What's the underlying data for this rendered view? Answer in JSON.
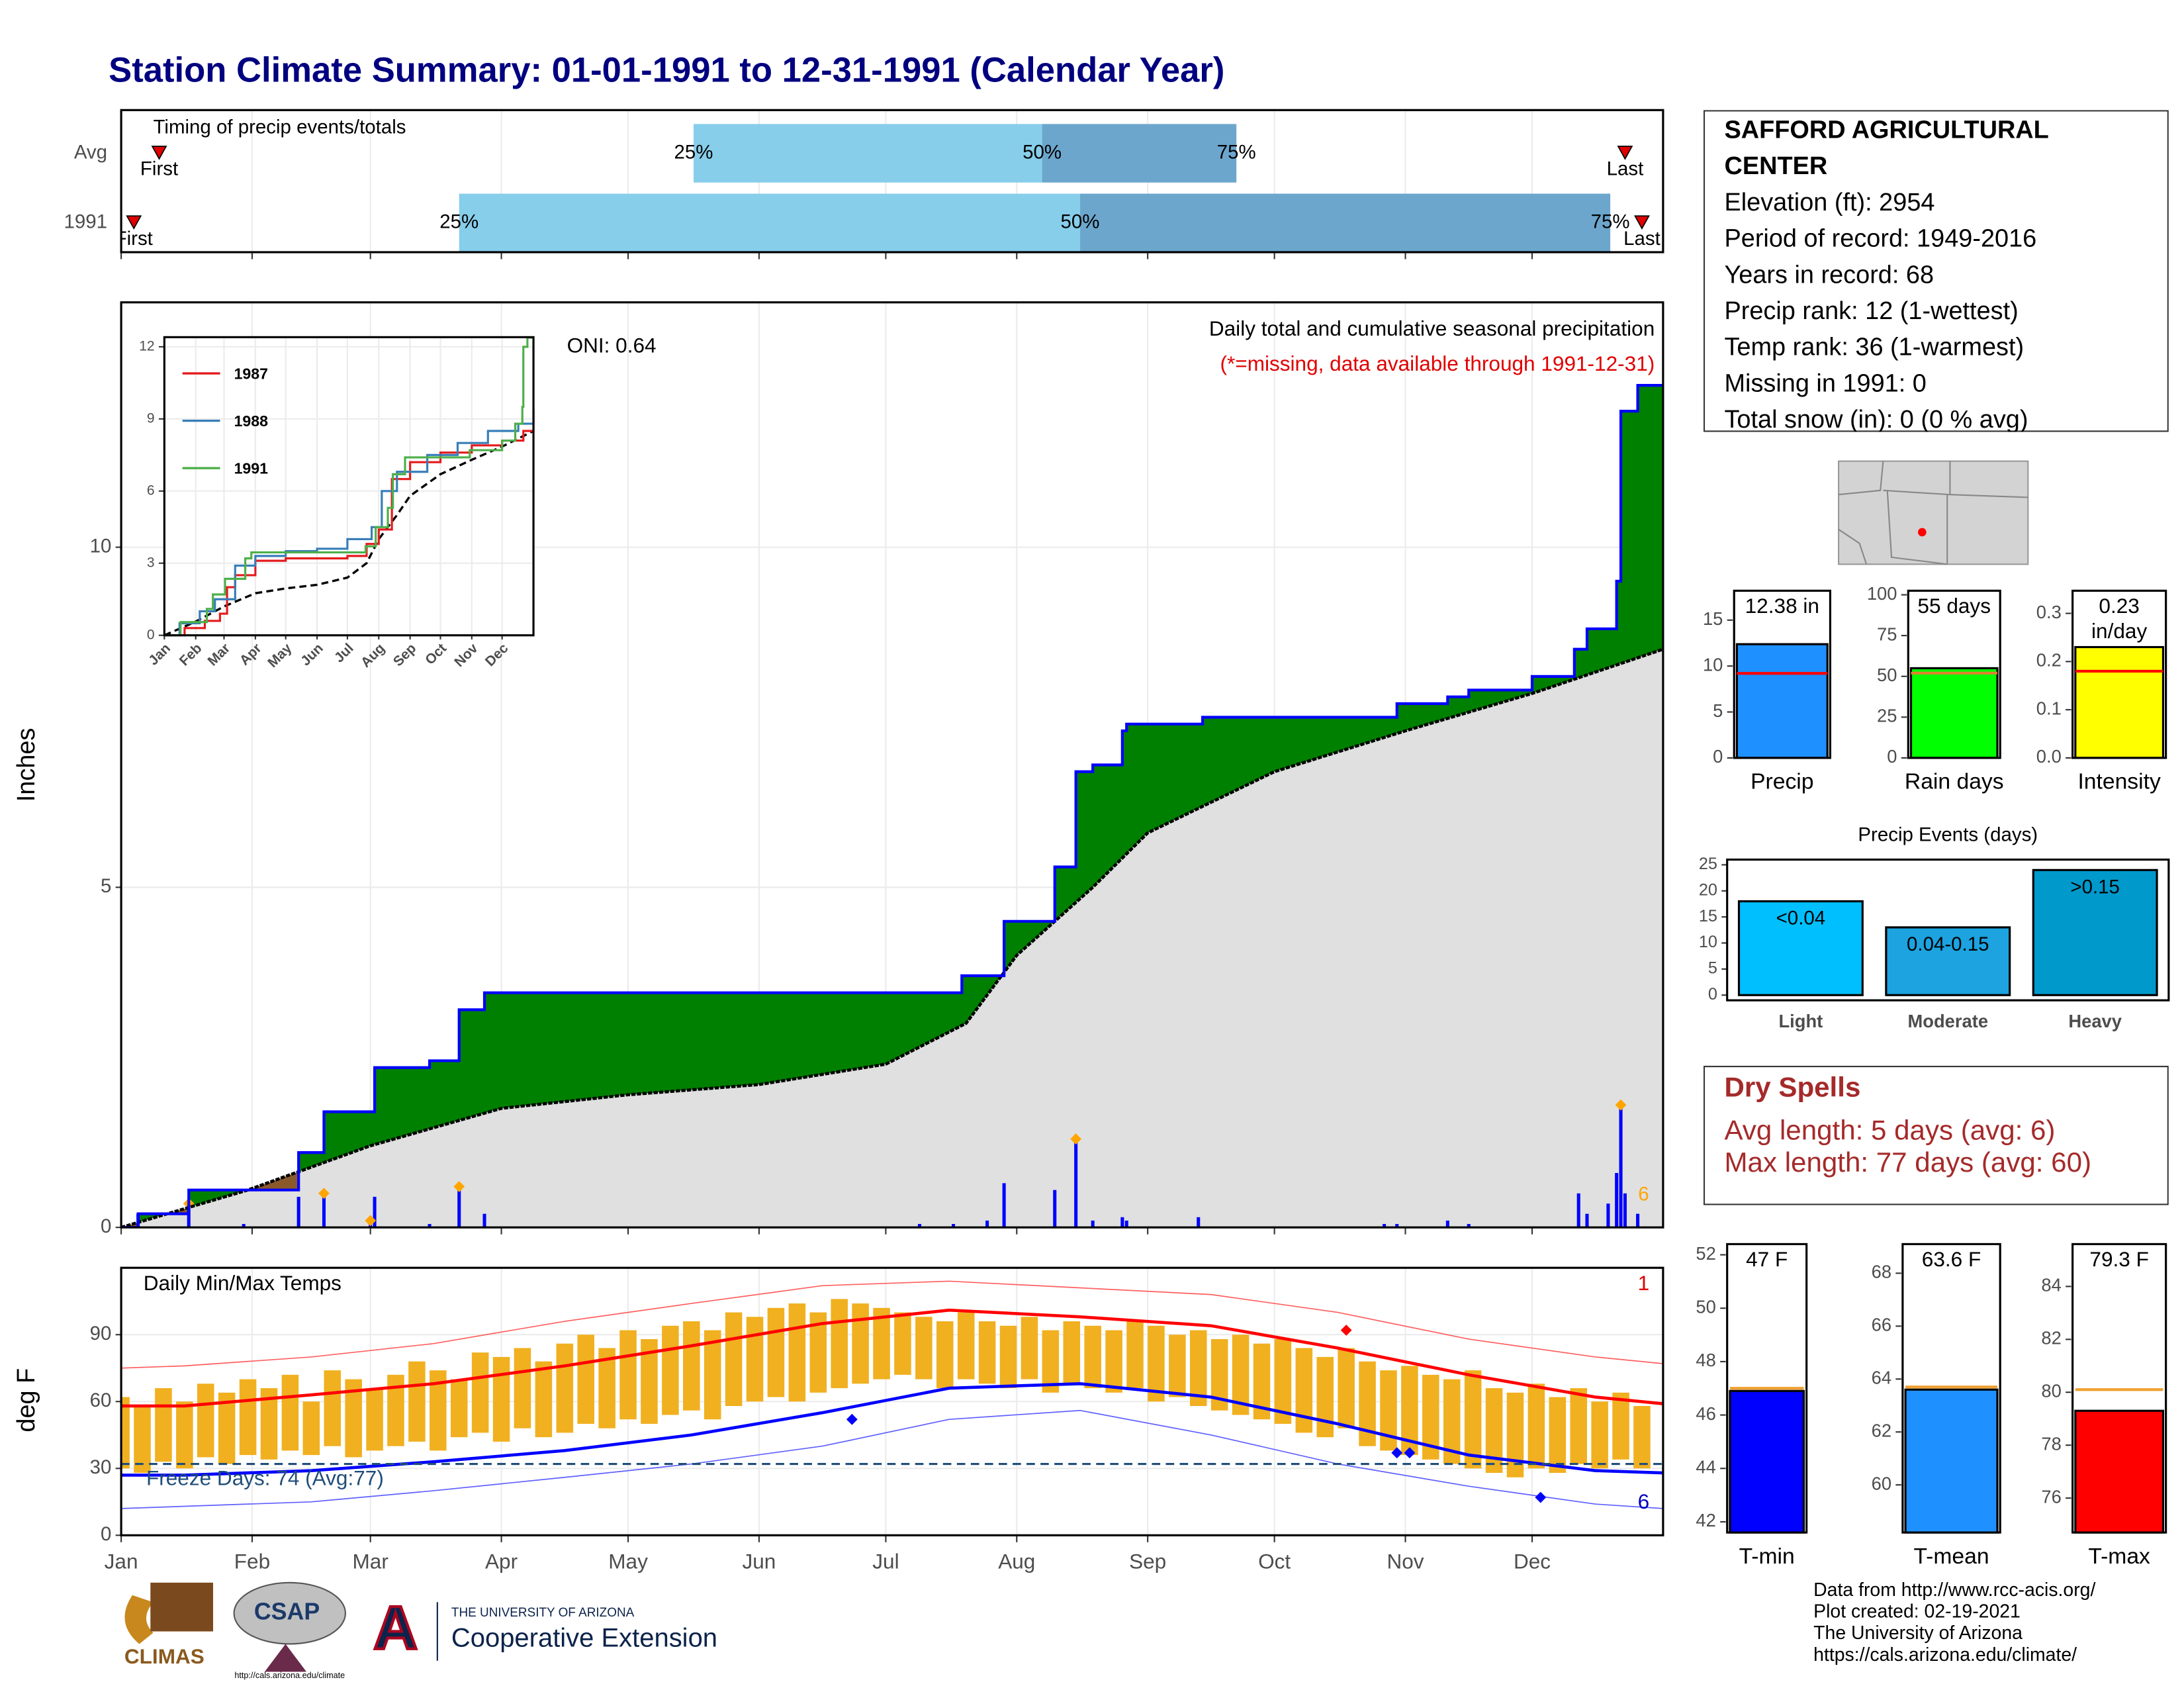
{
  "title": "Station Climate Summary: 01-01-1991 to 12-31-1991 (Calendar Year)",
  "station": {
    "name": "SAFFORD AGRICULTURAL CENTER",
    "lines": [
      "Elevation (ft): 2954",
      "Period of record: 1949-2016",
      "Years in record: 68",
      "Precip rank: 12 (1-wettest)",
      "Temp rank: 36 (1-warmest)",
      "Missing in 1991: 0",
      "Total snow (in): 0 (0 % avg)"
    ]
  },
  "dry_spells": {
    "title": "Dry Spells",
    "lines": [
      "Avg length: 5 days (avg: 6)",
      "Max length: 77 days (avg: 60)"
    ]
  },
  "footer": {
    "lines": [
      "Data from http://www.rcc-acis.org/",
      "Plot created: 02-19-2021",
      "The University of Arizona",
      "https://cals.arizona.edu/climate/"
    ]
  },
  "logos": {
    "climas": "CLIMAS",
    "csap": "CSAP",
    "csap_url": "http://cals.arizona.edu/climate",
    "university": "THE UNIVERSITY OF ARIZONA",
    "extension": "Cooperative Extension"
  },
  "chart_data": [
    {
      "type": "timeline",
      "title": "Timing of precip events/totals",
      "xlim": [
        0,
        365
      ],
      "quantile_labels": [
        "25%",
        "50%",
        "75%"
      ],
      "first_label": "First",
      "last_label": "Last",
      "colors": [
        "#87ceeb",
        "#6ca6cd"
      ],
      "series": [
        {
          "name": "Avg",
          "first": 9,
          "q25": 135.5,
          "q50": 218,
          "q75": 264,
          "last": 356
        },
        {
          "name": "1991",
          "first": 3,
          "q25": 80,
          "q50": 227,
          "q75": 352.5,
          "last": 360
        }
      ]
    },
    {
      "type": "cumulative",
      "title": "Daily total and cumulative seasonal precipitation",
      "subtitle": "(*=missing, data available through 1991-12-31)",
      "oni": "ONI: 0.64",
      "corner_note": "6",
      "y_label": "Inches",
      "xlim": [
        0,
        365
      ],
      "ylim": [
        0,
        13.6
      ],
      "yticks": [
        0,
        5,
        10
      ],
      "grid": true,
      "cumulative": {
        "color": "#0000ff",
        "x": [
          0,
          4,
          16,
          42,
          48,
          60,
          73,
          80,
          86,
          199,
          209,
          221,
          226,
          230,
          237,
          238,
          256,
          302,
          314,
          319,
          334,
          344,
          347,
          354,
          355,
          359
        ],
        "values": [
          0,
          0.2,
          0.55,
          1.1,
          1.7,
          2.35,
          2.45,
          3.2,
          3.45,
          3.7,
          4.5,
          5.3,
          6.7,
          6.8,
          7.3,
          7.4,
          7.5,
          7.7,
          7.8,
          7.9,
          8.1,
          8.5,
          8.8,
          9.5,
          12.0,
          12.38
        ]
      },
      "normal": {
        "color": "#000000",
        "x": [
          0,
          30,
          59,
          90,
          120,
          151,
          181,
          200,
          212,
          230,
          243,
          273,
          304,
          334,
          365
        ],
        "values": [
          0,
          0.55,
          1.2,
          1.75,
          1.95,
          2.1,
          2.4,
          3.0,
          4.0,
          5.0,
          5.8,
          6.7,
          7.3,
          7.85,
          8.5
        ]
      },
      "daily": {
        "color": "#0000ff",
        "x": [
          4,
          16,
          29,
          42,
          48,
          59,
          60,
          73,
          80,
          86,
          189,
          197,
          205,
          209,
          221,
          226,
          230,
          237,
          238,
          255,
          299,
          302,
          314,
          319,
          345,
          347,
          352,
          354,
          355,
          356,
          359
        ],
        "values": [
          0.2,
          0.35,
          0.05,
          0.45,
          0.5,
          0.1,
          0.45,
          0.05,
          0.6,
          0.2,
          0.05,
          0.05,
          0.1,
          0.65,
          0.55,
          1.3,
          0.1,
          0.15,
          0.1,
          0.15,
          0.05,
          0.05,
          0.1,
          0.05,
          0.5,
          0.2,
          0.35,
          0.8,
          1.8,
          0.5,
          0.2
        ]
      },
      "highlight_index": [
        1,
        4,
        5,
        8,
        15,
        28
      ],
      "highlight_color": "#ffa500",
      "above_color": "#008000",
      "below_color": "#8b5a2b",
      "normal_fill": "#e0e0e0"
    },
    {
      "type": "line",
      "xlim": [
        0,
        365
      ],
      "ylim": [
        0,
        12.4
      ],
      "yticks": [
        0,
        3,
        6,
        9,
        12
      ],
      "grid": true,
      "xticks": [
        {
          "value": 0,
          "label": "Jan"
        },
        {
          "value": 31,
          "label": "Feb"
        },
        {
          "value": 59,
          "label": "Mar"
        },
        {
          "value": 90,
          "label": "Apr"
        },
        {
          "value": 120,
          "label": "May"
        },
        {
          "value": 151,
          "label": "Jun"
        },
        {
          "value": 181,
          "label": "Jul"
        },
        {
          "value": 212,
          "label": "Aug"
        },
        {
          "value": 243,
          "label": "Sep"
        },
        {
          "value": 273,
          "label": "Oct"
        },
        {
          "value": 304,
          "label": "Nov"
        },
        {
          "value": 334,
          "label": "Dec"
        }
      ],
      "series": [
        {
          "name": "1987",
          "color": "#e41a1c",
          "x": [
            0,
            20,
            40,
            55,
            62,
            70,
            90,
            120,
            151,
            181,
            200,
            212,
            225,
            243,
            273,
            304,
            334,
            355,
            365
          ],
          "values": [
            0,
            0.3,
            0.6,
            0.9,
            2.0,
            2.5,
            3.1,
            3.2,
            3.2,
            3.3,
            3.8,
            4.4,
            6.5,
            7.2,
            7.6,
            7.9,
            8.1,
            8.5,
            9.3
          ]
        },
        {
          "name": "1988",
          "color": "#377eb8",
          "x": [
            0,
            15,
            35,
            50,
            70,
            90,
            120,
            151,
            181,
            205,
            215,
            230,
            260,
            290,
            320,
            350,
            365
          ],
          "values": [
            0,
            0.5,
            1.0,
            1.5,
            2.9,
            3.3,
            3.5,
            3.6,
            4.0,
            4.5,
            6.0,
            6.8,
            7.5,
            8.0,
            8.5,
            8.8,
            9.4
          ]
        },
        {
          "name": "1991",
          "color": "#4daf4a",
          "x": [
            0,
            16,
            42,
            48,
            60,
            80,
            86,
            199,
            209,
            221,
            226,
            238,
            302,
            334,
            347,
            354,
            355,
            359,
            365
          ],
          "values": [
            0,
            0.55,
            1.1,
            1.7,
            2.35,
            3.2,
            3.45,
            3.7,
            4.5,
            5.3,
            6.7,
            7.4,
            7.7,
            8.1,
            8.8,
            9.5,
            12.0,
            12.38,
            12.38
          ]
        }
      ],
      "normal": {
        "color": "#000000",
        "x": [
          0,
          30,
          59,
          90,
          120,
          151,
          181,
          200,
          212,
          230,
          243,
          273,
          304,
          334,
          365
        ],
        "values": [
          0,
          0.55,
          1.2,
          1.75,
          1.95,
          2.1,
          2.4,
          3.0,
          4.0,
          5.0,
          5.8,
          6.7,
          7.3,
          7.85,
          8.5
        ]
      }
    },
    {
      "type": "temperature",
      "title": "Daily Min/Max Temps",
      "freeze_text": "Freeze Days: 74 (Avg:77)",
      "y_label": "deg F",
      "note_high": "1",
      "note_low": "6",
      "xlim": [
        0,
        365
      ],
      "ylim": [
        0,
        120
      ],
      "yticks": [
        0,
        30,
        60,
        90
      ],
      "grid": true,
      "xticks": [
        {
          "value": 0,
          "label": "Jan"
        },
        {
          "value": 31,
          "label": "Feb"
        },
        {
          "value": 59,
          "label": "Mar"
        },
        {
          "value": 90,
          "label": "Apr"
        },
        {
          "value": 120,
          "label": "May"
        },
        {
          "value": 151,
          "label": "Jun"
        },
        {
          "value": 181,
          "label": "Jul"
        },
        {
          "value": 212,
          "label": "Aug"
        },
        {
          "value": 243,
          "label": "Sep"
        },
        {
          "value": 273,
          "label": "Oct"
        },
        {
          "value": 304,
          "label": "Nov"
        },
        {
          "value": 334,
          "label": "Dec"
        }
      ],
      "freeze_threshold": 32,
      "bar_color": "#f0b020",
      "bars": {
        "x": [
          0,
          5,
          10,
          15,
          20,
          25,
          30,
          35,
          40,
          45,
          50,
          55,
          60,
          65,
          70,
          75,
          80,
          85,
          90,
          95,
          100,
          105,
          110,
          115,
          120,
          125,
          130,
          135,
          140,
          145,
          150,
          155,
          160,
          165,
          170,
          175,
          180,
          185,
          190,
          195,
          200,
          205,
          210,
          215,
          220,
          225,
          230,
          235,
          240,
          245,
          250,
          255,
          260,
          265,
          270,
          275,
          280,
          285,
          290,
          295,
          300,
          305,
          310,
          315,
          320,
          325,
          330,
          335,
          340,
          345,
          350,
          355,
          360
        ],
        "max": [
          62,
          58,
          66,
          60,
          68,
          64,
          70,
          66,
          72,
          60,
          74,
          70,
          66,
          72,
          78,
          74,
          70,
          82,
          80,
          84,
          78,
          86,
          90,
          84,
          92,
          88,
          94,
          96,
          92,
          100,
          98,
          102,
          104,
          100,
          106,
          104,
          102,
          100,
          98,
          96,
          100,
          96,
          94,
          98,
          92,
          96,
          94,
          92,
          96,
          94,
          90,
          92,
          88,
          90,
          86,
          88,
          84,
          80,
          84,
          78,
          74,
          76,
          72,
          70,
          74,
          66,
          64,
          68,
          62,
          66,
          60,
          64,
          58
        ],
        "min": [
          30,
          28,
          33,
          30,
          35,
          32,
          36,
          34,
          38,
          36,
          40,
          35,
          38,
          40,
          42,
          38,
          44,
          46,
          42,
          48,
          44,
          46,
          50,
          48,
          52,
          50,
          54,
          56,
          52,
          58,
          60,
          62,
          60,
          64,
          66,
          68,
          70,
          72,
          70,
          66,
          70,
          68,
          66,
          70,
          64,
          68,
          66,
          64,
          66,
          60,
          62,
          58,
          56,
          54,
          52,
          50,
          46,
          44,
          48,
          40,
          38,
          36,
          34,
          32,
          30,
          28,
          26,
          30,
          28,
          32,
          30,
          34,
          30
        ]
      },
      "line_x": [
        0,
        15,
        45,
        74,
        105,
        135,
        166,
        196,
        227,
        258,
        288,
        319,
        349,
        365
      ],
      "normal_max": {
        "color": "#ff0000",
        "values": [
          58,
          58,
          63,
          68,
          76,
          85,
          95,
          101,
          98,
          94,
          84,
          72,
          62,
          59
        ]
      },
      "normal_min": {
        "color": "#0000ff",
        "values": [
          27,
          27,
          29,
          33,
          38,
          45,
          55,
          66,
          68,
          62,
          50,
          36,
          29,
          28
        ]
      },
      "record_max": {
        "color": "#ff6060",
        "values": [
          75,
          76,
          80,
          86,
          96,
          104,
          112,
          114,
          111,
          108,
          100,
          88,
          80,
          77
        ]
      },
      "record_min": {
        "color": "#6060ff",
        "values": [
          12,
          13,
          15,
          20,
          26,
          32,
          40,
          52,
          56,
          45,
          32,
          22,
          14,
          12
        ]
      },
      "record_highs": {
        "color": "#ff0000",
        "x": [
          290
        ],
        "values": [
          92
        ]
      },
      "record_lows": {
        "color": "#0000ff",
        "x": [
          173,
          302,
          305,
          336
        ],
        "values": [
          52,
          37,
          37,
          17
        ]
      }
    },
    {
      "type": "bar",
      "categories": [
        "Precip"
      ],
      "values": [
        12.38
      ],
      "value_labels": [
        "12.38 in"
      ],
      "reference": 9.2,
      "reference_color": "#ff0000",
      "color": "#1e90ff",
      "ylim": [
        0,
        18.2
      ],
      "yticks": [
        0,
        5,
        10,
        15
      ]
    },
    {
      "type": "bar",
      "categories": [
        "Rain days"
      ],
      "values": [
        55
      ],
      "value_labels": [
        "55 days"
      ],
      "reference": 52,
      "reference_color": "#e08030",
      "color": "#00ff00",
      "ylim": [
        0,
        102.5
      ],
      "yticks": [
        0,
        25,
        50,
        75,
        100
      ]
    },
    {
      "type": "bar",
      "categories": [
        "Intensity"
      ],
      "values": [
        0.23
      ],
      "value_labels": [
        "0.23 in/day"
      ],
      "reference": 0.18,
      "reference_color": "#ff0000",
      "color": "#ffff00",
      "ylim": [
        0,
        0.347
      ],
      "yticks": [
        {
          "value": 0,
          "label": "0.0"
        },
        0.1,
        0.2,
        0.3
      ]
    },
    {
      "type": "events",
      "title": "Precip Events (days)",
      "categories": [
        "Light",
        "Moderate",
        "Heavy"
      ],
      "values": [
        18,
        13,
        24
      ],
      "value_labels": [
        "<0.04",
        "0.04-0.15",
        ">0.15"
      ],
      "colors": [
        "#00bfff",
        "#1ca3e0",
        "#0099cc"
      ],
      "ylim": [
        -1,
        26
      ],
      "yticks": [
        0,
        5,
        10,
        15,
        20,
        25
      ]
    },
    {
      "type": "bar",
      "categories": [
        "T-min"
      ],
      "values": [
        46.9
      ],
      "value_labels": [
        "47 F"
      ],
      "reference": 47,
      "reference_color": "#f0a030",
      "color": "#0000ff",
      "ylim": [
        41.6,
        52.4
      ],
      "yticks": [
        42,
        44,
        46,
        48,
        50,
        52
      ]
    },
    {
      "type": "bar",
      "categories": [
        "T-mean"
      ],
      "values": [
        63.6
      ],
      "value_labels": [
        "63.6 F"
      ],
      "reference": 63.7,
      "reference_color": "#f0a030",
      "color": "#1e90ff",
      "ylim": [
        58.2,
        69.1
      ],
      "yticks": [
        60,
        62,
        64,
        66,
        68
      ]
    },
    {
      "type": "bar",
      "categories": [
        "T-max"
      ],
      "values": [
        79.3
      ],
      "value_labels": [
        "79.3 F"
      ],
      "reference": 80.1,
      "reference_color": "#f0a030",
      "color": "#ff0000",
      "ylim": [
        74.7,
        85.6
      ],
      "yticks": [
        76,
        78,
        80,
        82,
        84
      ]
    }
  ]
}
